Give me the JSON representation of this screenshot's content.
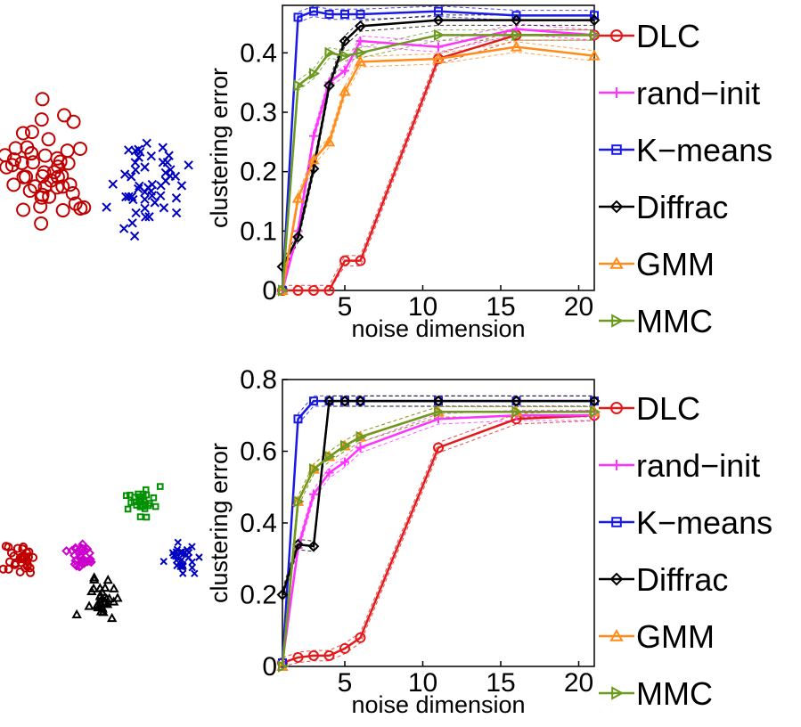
{
  "colors": {
    "DLC": "#e31a1c",
    "rand-init": "#ff33ff",
    "K-means": "#1a1ae6",
    "Diffrac": "#000000",
    "GMM": "#ff8c1a",
    "MMC": "#6b9a1f"
  },
  "chart_data": [
    {
      "type": "scatter",
      "xlabel": "",
      "ylabel": "",
      "series": [
        {
          "marker": "circle",
          "color": "#c00000",
          "count": 50
        },
        {
          "marker": "x",
          "color": "#0000c0",
          "count": 50
        }
      ]
    },
    {
      "type": "line",
      "xlabel": "noise dimension",
      "ylabel": "clustering error",
      "xlim": [
        1,
        21
      ],
      "ylim": [
        0,
        0.48
      ],
      "xticks": [
        "5",
        "10",
        "15",
        "20"
      ],
      "yticks": [
        "0",
        "0.1",
        "0.2",
        "0.3",
        "0.4"
      ],
      "legend_position": "right",
      "series": [
        {
          "name": "DLC",
          "marker": "circle",
          "x": [
            1,
            2,
            3,
            4,
            5,
            6,
            11,
            16,
            21
          ],
          "y": [
            0,
            0,
            0,
            0,
            0.05,
            0.05,
            0.39,
            0.43,
            0.43
          ]
        },
        {
          "name": "rand-init",
          "marker": "plus",
          "x": [
            1,
            2,
            3,
            4,
            5,
            6,
            11,
            16,
            21
          ],
          "y": [
            0,
            0.1,
            0.26,
            0.35,
            0.37,
            0.42,
            0.41,
            0.44,
            0.43
          ]
        },
        {
          "name": "K-means",
          "marker": "square",
          "x": [
            1,
            2,
            3,
            4,
            5,
            6,
            11,
            16,
            21
          ],
          "y": [
            0,
            0.46,
            0.47,
            0.465,
            0.465,
            0.465,
            0.47,
            0.463,
            0.463
          ]
        },
        {
          "name": "Diffrac",
          "marker": "diamond",
          "x": [
            1,
            2,
            3,
            4,
            5,
            6,
            11,
            16,
            21
          ],
          "y": [
            0.04,
            0.09,
            0.205,
            0.345,
            0.42,
            0.445,
            0.455,
            0.455,
            0.455
          ]
        },
        {
          "name": "GMM",
          "marker": "triangle-up",
          "x": [
            1,
            2,
            3,
            4,
            5,
            6,
            11,
            16,
            21
          ],
          "y": [
            0,
            0.155,
            0.22,
            0.25,
            0.335,
            0.385,
            0.39,
            0.41,
            0.395
          ]
        },
        {
          "name": "MMC",
          "marker": "triangle-right",
          "x": [
            1,
            2,
            3,
            4,
            5,
            6,
            11,
            16,
            21
          ],
          "y": [
            0,
            0.345,
            0.365,
            0.4,
            0.395,
            0.4,
            0.43,
            0.43,
            0.43
          ]
        }
      ]
    },
    {
      "type": "scatter",
      "xlabel": "",
      "ylabel": "",
      "series": [
        {
          "marker": "circle",
          "color": "#c00000",
          "count": 30
        },
        {
          "marker": "diamond",
          "color": "#cc00cc",
          "count": 30
        },
        {
          "marker": "triangle-up",
          "color": "#000000",
          "count": 30
        },
        {
          "marker": "square",
          "color": "#009000",
          "count": 30
        },
        {
          "marker": "x",
          "color": "#0000c0",
          "count": 30
        }
      ]
    },
    {
      "type": "line",
      "xlabel": "noise dimension",
      "ylabel": "clustering error",
      "xlim": [
        1,
        21
      ],
      "ylim": [
        0,
        0.8
      ],
      "xticks": [
        "5",
        "10",
        "15",
        "20"
      ],
      "yticks": [
        "0",
        "0.2",
        "0.4",
        "0.6",
        "0.8"
      ],
      "legend_position": "right",
      "series": [
        {
          "name": "DLC",
          "marker": "circle",
          "x": [
            1,
            2,
            3,
            4,
            5,
            6,
            11,
            16,
            21
          ],
          "y": [
            0.01,
            0.025,
            0.03,
            0.03,
            0.05,
            0.08,
            0.61,
            0.69,
            0.7
          ]
        },
        {
          "name": "rand-init",
          "marker": "plus",
          "x": [
            1,
            2,
            3,
            4,
            5,
            6,
            11,
            16,
            21
          ],
          "y": [
            0.01,
            0.33,
            0.48,
            0.54,
            0.57,
            0.61,
            0.69,
            0.7,
            0.7
          ]
        },
        {
          "name": "K-means",
          "marker": "square",
          "x": [
            1,
            2,
            3,
            4,
            5,
            6,
            11,
            16,
            21
          ],
          "y": [
            0.01,
            0.69,
            0.74,
            0.74,
            0.74,
            0.74,
            0.74,
            0.74,
            0.74
          ]
        },
        {
          "name": "Diffrac",
          "marker": "diamond",
          "x": [
            1,
            2,
            3,
            4,
            5,
            6,
            11,
            16,
            21
          ],
          "y": [
            0.2,
            0.34,
            0.335,
            0.74,
            0.74,
            0.74,
            0.74,
            0.74,
            0.74
          ]
        },
        {
          "name": "GMM",
          "marker": "triangle-up",
          "x": [
            1,
            2,
            3,
            4,
            5,
            6,
            11,
            16,
            21
          ],
          "y": [
            0,
            0.46,
            0.55,
            0.585,
            0.615,
            0.64,
            0.71,
            0.71,
            0.71
          ]
        },
        {
          "name": "MMC",
          "marker": "triangle-right",
          "x": [
            1,
            2,
            3,
            4,
            5,
            6,
            11,
            16,
            21
          ],
          "y": [
            0,
            0.46,
            0.55,
            0.585,
            0.615,
            0.64,
            0.71,
            0.71,
            0.71
          ]
        }
      ]
    }
  ],
  "legend": [
    "DLC",
    "rand-init",
    "K-means",
    "Diffrac",
    "GMM",
    "MMC"
  ]
}
